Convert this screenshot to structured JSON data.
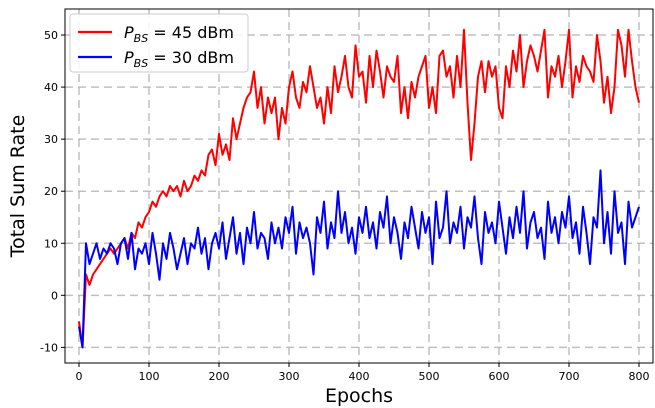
{
  "chart_data": {
    "type": "line",
    "xlabel": "Epochs",
    "ylabel": "Total Sum Rate",
    "xlim": [
      -20,
      820
    ],
    "ylim": [
      -13,
      55
    ],
    "xticks": [
      0,
      100,
      200,
      300,
      400,
      500,
      600,
      700,
      800
    ],
    "yticks": [
      -10,
      0,
      10,
      20,
      30,
      40,
      50
    ],
    "grid": true,
    "legend_position": "top-left",
    "series": [
      {
        "name": "P_BS = 45 dBm",
        "label_base": "P",
        "label_sub": "BS",
        "label_rest": " = 45 dBm",
        "color": "#ff0000",
        "x": [
          0,
          5,
          10,
          15,
          20,
          25,
          30,
          35,
          40,
          45,
          50,
          55,
          60,
          65,
          70,
          75,
          80,
          85,
          90,
          95,
          100,
          105,
          110,
          115,
          120,
          125,
          130,
          135,
          140,
          145,
          150,
          155,
          160,
          165,
          170,
          175,
          180,
          185,
          190,
          195,
          200,
          205,
          210,
          215,
          220,
          225,
          230,
          235,
          240,
          245,
          250,
          255,
          260,
          265,
          270,
          275,
          280,
          285,
          290,
          295,
          300,
          305,
          310,
          315,
          320,
          325,
          330,
          335,
          340,
          345,
          350,
          355,
          360,
          365,
          370,
          375,
          380,
          385,
          390,
          395,
          400,
          405,
          410,
          415,
          420,
          425,
          430,
          435,
          440,
          445,
          450,
          455,
          460,
          465,
          470,
          475,
          480,
          485,
          490,
          495,
          500,
          505,
          510,
          515,
          520,
          525,
          530,
          535,
          540,
          545,
          550,
          555,
          560,
          565,
          570,
          575,
          580,
          585,
          590,
          595,
          600,
          605,
          610,
          615,
          620,
          625,
          630,
          635,
          640,
          645,
          650,
          655,
          660,
          665,
          670,
          675,
          680,
          685,
          690,
          695,
          700,
          705,
          710,
          715,
          720,
          725,
          730,
          735,
          740,
          745,
          750,
          755,
          760,
          765,
          770,
          775,
          780,
          785,
          790,
          795,
          800
        ],
        "values": [
          -5,
          -10,
          4,
          2,
          4,
          5,
          6,
          7,
          8,
          9,
          8,
          9,
          10,
          11,
          9,
          12,
          11,
          14,
          13,
          15,
          16,
          18,
          17,
          19,
          20,
          19,
          21,
          20,
          21,
          19,
          22,
          20,
          21,
          23,
          22,
          24,
          23,
          27,
          28,
          25,
          31,
          27,
          29,
          26,
          34,
          30,
          33,
          36,
          38,
          39,
          43,
          36,
          40,
          33,
          38,
          35,
          38,
          30,
          36,
          33,
          40,
          43,
          38,
          36,
          41,
          39,
          44,
          40,
          36,
          38,
          33,
          40,
          35,
          44,
          39,
          42,
          46,
          40,
          38,
          48,
          42,
          43,
          37,
          46,
          40,
          47,
          43,
          38,
          44,
          42,
          41,
          46,
          35,
          40,
          34,
          41,
          38,
          42,
          44,
          46,
          36,
          40,
          35,
          46,
          47,
          42,
          44,
          38,
          46,
          40,
          51,
          37,
          26,
          33,
          42,
          45,
          39,
          45,
          42,
          44,
          36,
          34,
          44,
          40,
          47,
          43,
          50,
          40,
          45,
          48,
          46,
          43,
          47,
          51,
          38,
          44,
          42,
          46,
          40,
          45,
          51,
          38,
          44,
          41,
          46,
          44,
          43,
          41,
          50,
          45,
          37,
          42,
          35,
          40,
          51,
          48,
          42,
          51,
          45,
          40,
          37
        ]
      },
      {
        "name": "P_BS = 30 dBm",
        "label_base": "P",
        "label_sub": "BS",
        "label_rest": " = 30 dBm",
        "color": "#0000ff",
        "x": [
          0,
          5,
          10,
          15,
          20,
          25,
          30,
          35,
          40,
          45,
          50,
          55,
          60,
          65,
          70,
          75,
          80,
          85,
          90,
          95,
          100,
          105,
          110,
          115,
          120,
          125,
          130,
          135,
          140,
          145,
          150,
          155,
          160,
          165,
          170,
          175,
          180,
          185,
          190,
          195,
          200,
          205,
          210,
          215,
          220,
          225,
          230,
          235,
          240,
          245,
          250,
          255,
          260,
          265,
          270,
          275,
          280,
          285,
          290,
          295,
          300,
          305,
          310,
          315,
          320,
          325,
          330,
          335,
          340,
          345,
          350,
          355,
          360,
          365,
          370,
          375,
          380,
          385,
          390,
          395,
          400,
          405,
          410,
          415,
          420,
          425,
          430,
          435,
          440,
          445,
          450,
          455,
          460,
          465,
          470,
          475,
          480,
          485,
          490,
          495,
          500,
          505,
          510,
          515,
          520,
          525,
          530,
          535,
          540,
          545,
          550,
          555,
          560,
          565,
          570,
          575,
          580,
          585,
          590,
          595,
          600,
          605,
          610,
          615,
          620,
          625,
          630,
          635,
          640,
          645,
          650,
          655,
          660,
          665,
          670,
          675,
          680,
          685,
          690,
          695,
          700,
          705,
          710,
          715,
          720,
          725,
          730,
          735,
          740,
          745,
          750,
          755,
          760,
          765,
          770,
          775,
          780,
          785,
          790,
          795,
          800
        ],
        "values": [
          -6,
          -10,
          10,
          6,
          8,
          10,
          7,
          9,
          8,
          10,
          9,
          6,
          10,
          11,
          7,
          12,
          5,
          9,
          8,
          10,
          6,
          12,
          8,
          3,
          10,
          7,
          12,
          9,
          5,
          8,
          11,
          6,
          10,
          9,
          13,
          8,
          11,
          5,
          10,
          12,
          9,
          14,
          7,
          11,
          15,
          8,
          12,
          6,
          13,
          10,
          16,
          9,
          12,
          11,
          7,
          14,
          10,
          13,
          9,
          15,
          12,
          17,
          8,
          14,
          11,
          13,
          10,
          4,
          15,
          12,
          18,
          9,
          14,
          11,
          20,
          12,
          16,
          10,
          13,
          8,
          15,
          12,
          17,
          11,
          14,
          9,
          16,
          13,
          19,
          10,
          15,
          12,
          7,
          14,
          11,
          17,
          13,
          9,
          16,
          12,
          15,
          6,
          18,
          11,
          13,
          20,
          10,
          14,
          12,
          17,
          9,
          15,
          13,
          19,
          11,
          6,
          16,
          12,
          14,
          10,
          18,
          13,
          8,
          15,
          11,
          17,
          12,
          20,
          9,
          14,
          16,
          11,
          13,
          7,
          18,
          12,
          15,
          10,
          16,
          13,
          19,
          11,
          14,
          8,
          17,
          12,
          6,
          15,
          13,
          24,
          10,
          16,
          8,
          20,
          12,
          14,
          6,
          18,
          13,
          15,
          17
        ]
      }
    ]
  }
}
